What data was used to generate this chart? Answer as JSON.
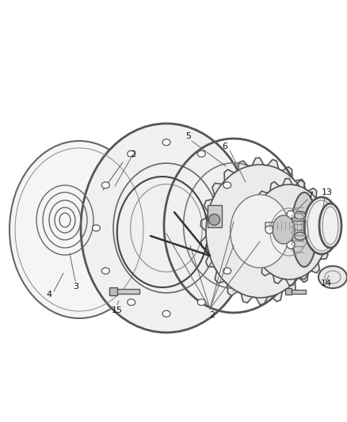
{
  "bg_color": "#ffffff",
  "line_color": "#444444",
  "label_color": "#111111",
  "fig_width": 4.39,
  "fig_height": 5.33,
  "dpi": 100,
  "label_fontsize": 8.0
}
